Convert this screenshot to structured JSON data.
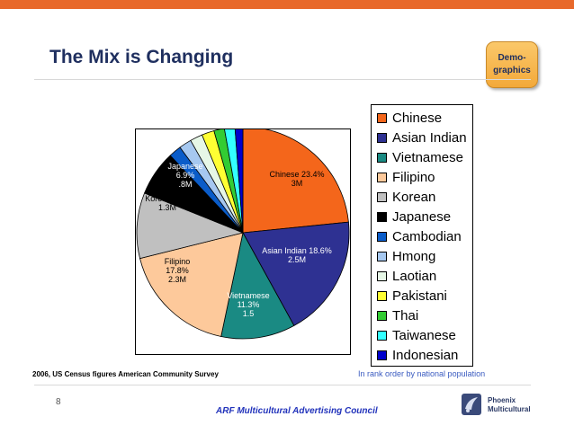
{
  "slide": {
    "title": "The Mix is Changing",
    "badge": "Demo-\ngraphics",
    "source": "2006, US Census figures American Community Survey",
    "note": "In rank order by national population",
    "page_number": "8",
    "footer": "ARF Multicultural Advertising Council",
    "logo_line1": "Phoenix",
    "logo_line2": "Multicultural",
    "accent_color": "#e8692b"
  },
  "chart_data": {
    "type": "pie",
    "legend_position": "right",
    "series": [
      {
        "name": "Chinese",
        "value": 23.4,
        "label": [
          "Chinese 23.4%",
          "3M"
        ],
        "color": "#f4661b"
      },
      {
        "name": "Asian Indian",
        "value": 18.6,
        "label": [
          "Asian Indian 18.6%",
          "2.5M"
        ],
        "color": "#2e3192"
      },
      {
        "name": "Vietnamese",
        "value": 11.3,
        "label": [
          "Vietnamese",
          "11.3%",
          "1.5"
        ],
        "color": "#1a8a83"
      },
      {
        "name": "Filipino",
        "value": 17.8,
        "label": [
          "Filipino",
          "17.8%",
          "2.3M"
        ],
        "color": "#fdc99b"
      },
      {
        "name": "Korean",
        "value": 10.0,
        "label": [
          "Korean 10%",
          "1.3M"
        ],
        "color": "#c0c0c0"
      },
      {
        "name": "Japanese",
        "value": 6.9,
        "label": [
          "Japanese",
          "6.9%",
          ".8M"
        ],
        "color": "#000000"
      },
      {
        "name": "Cambodian",
        "value": 1.9,
        "label": [],
        "color": "#0a5cc9"
      },
      {
        "name": "Hmong",
        "value": 1.9,
        "label": [],
        "color": "#a6c8f0"
      },
      {
        "name": "Laotian",
        "value": 1.9,
        "label": [],
        "color": "#e6f7e6"
      },
      {
        "name": "Pakistani",
        "value": 1.9,
        "label": [],
        "color": "#ffff33"
      },
      {
        "name": "Thai",
        "value": 1.6,
        "label": [],
        "color": "#33cc33"
      },
      {
        "name": "Taiwanese",
        "value": 1.6,
        "label": [],
        "color": "#33ffff"
      },
      {
        "name": "Indonesian",
        "value": 1.2,
        "label": [],
        "color": "#0000cc"
      }
    ]
  }
}
